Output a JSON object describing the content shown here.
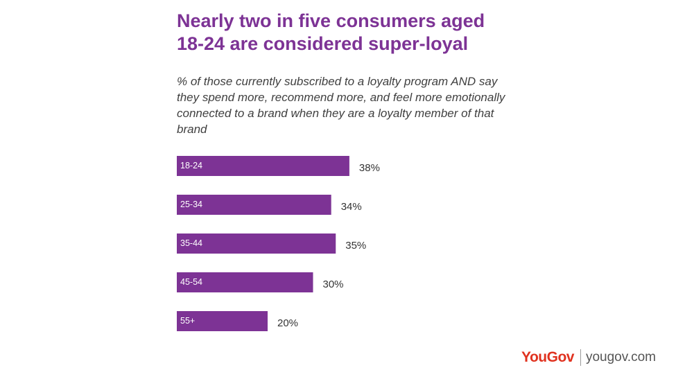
{
  "title_lines": [
    "Nearly two in five consumers aged",
    "18-24 are considered super-loyal"
  ],
  "subtitle": "% of those currently subscribed to a loyalty program AND say they spend more, recommend more, and feel more emotionally connected to a brand when they are a loyalty member of that brand",
  "brand": {
    "name": "YouGov",
    "url": "yougov.com",
    "color": "#e0321f"
  },
  "colors": {
    "bar": "#7d3395",
    "title": "#7d3395"
  },
  "chart_data": {
    "type": "bar",
    "orientation": "horizontal",
    "categories": [
      "18-24",
      "25-34",
      "35-44",
      "45-54",
      "55+"
    ],
    "values": [
      38,
      34,
      35,
      30,
      20
    ],
    "value_labels": [
      "38%",
      "34%",
      "35%",
      "30%",
      "20%"
    ],
    "unit": "%",
    "xlim": [
      0,
      100
    ],
    "grid": false,
    "legend": "none"
  }
}
